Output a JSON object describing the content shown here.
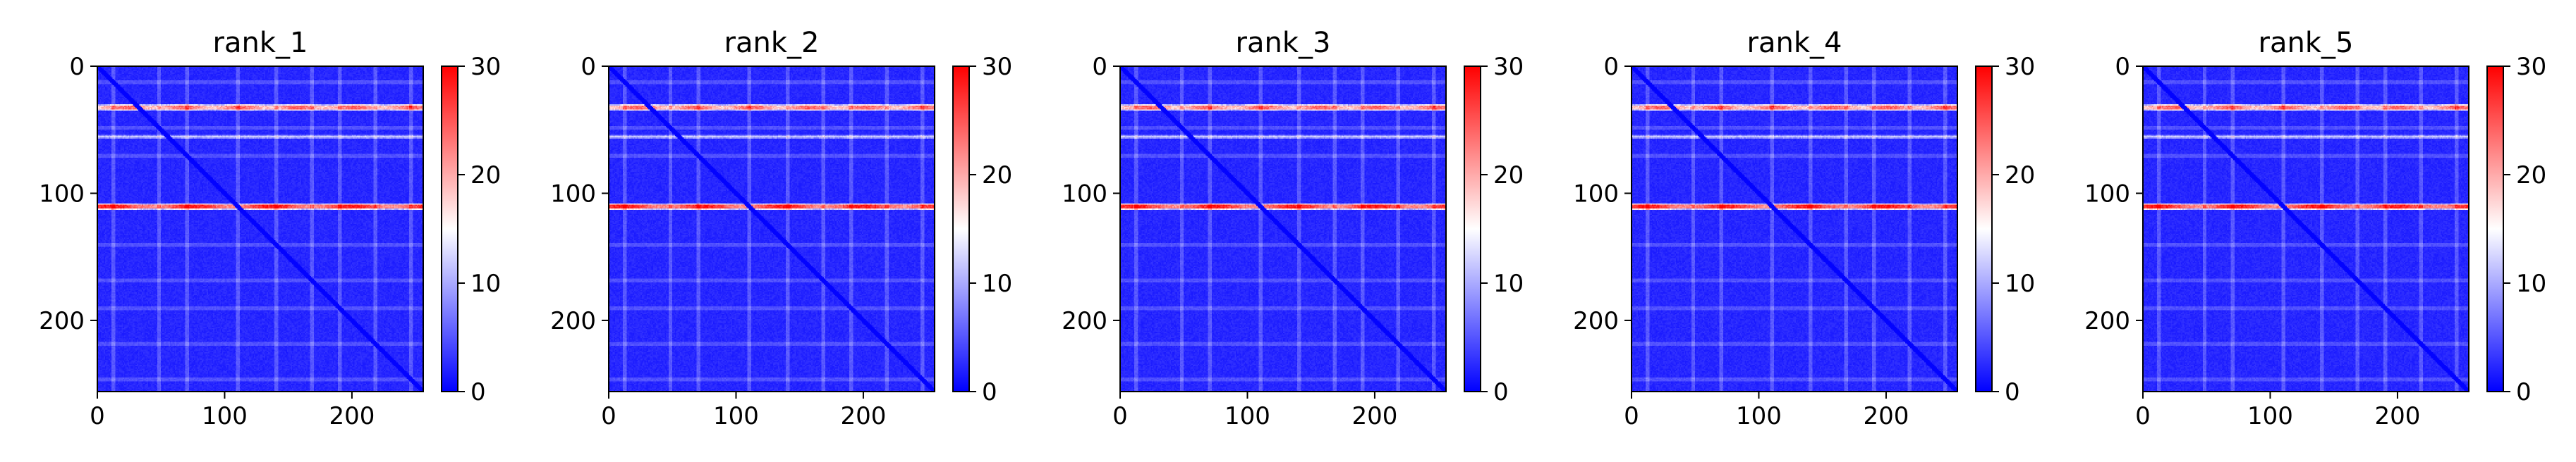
{
  "chart_data": [
    {
      "type": "heatmap",
      "title": "rank_1",
      "shape": [
        256,
        256
      ],
      "x_ticks": [
        0,
        100,
        200
      ],
      "y_ticks": [
        0,
        100,
        200
      ],
      "xlim": [
        0,
        256
      ],
      "ylim": [
        256,
        0
      ],
      "colorbar": {
        "min": 0,
        "max": 30,
        "ticks": [
          0,
          10,
          20,
          30
        ],
        "colormap": "bwr",
        "colors": [
          "#0000ff",
          "#ffffff",
          "#ff0000"
        ]
      },
      "bright_rows": [
        32,
        55,
        110
      ],
      "diagonal": true
    },
    {
      "type": "heatmap",
      "title": "rank_2",
      "shape": [
        256,
        256
      ],
      "x_ticks": [
        0,
        100,
        200
      ],
      "y_ticks": [
        0,
        100,
        200
      ],
      "xlim": [
        0,
        256
      ],
      "ylim": [
        256,
        0
      ],
      "colorbar": {
        "min": 0,
        "max": 30,
        "ticks": [
          0,
          10,
          20,
          30
        ],
        "colormap": "bwr",
        "colors": [
          "#0000ff",
          "#ffffff",
          "#ff0000"
        ]
      },
      "bright_rows": [
        32,
        55,
        110
      ],
      "diagonal": true
    },
    {
      "type": "heatmap",
      "title": "rank_3",
      "shape": [
        256,
        256
      ],
      "x_ticks": [
        0,
        100,
        200
      ],
      "y_ticks": [
        0,
        100,
        200
      ],
      "xlim": [
        0,
        256
      ],
      "ylim": [
        256,
        0
      ],
      "colorbar": {
        "min": 0,
        "max": 30,
        "ticks": [
          0,
          10,
          20,
          30
        ],
        "colormap": "bwr",
        "colors": [
          "#0000ff",
          "#ffffff",
          "#ff0000"
        ]
      },
      "bright_rows": [
        32,
        55,
        110
      ],
      "diagonal": true
    },
    {
      "type": "heatmap",
      "title": "rank_4",
      "shape": [
        256,
        256
      ],
      "x_ticks": [
        0,
        100,
        200
      ],
      "y_ticks": [
        0,
        100,
        200
      ],
      "xlim": [
        0,
        256
      ],
      "ylim": [
        256,
        0
      ],
      "colorbar": {
        "min": 0,
        "max": 30,
        "ticks": [
          0,
          10,
          20,
          30
        ],
        "colormap": "bwr",
        "colors": [
          "#0000ff",
          "#ffffff",
          "#ff0000"
        ]
      },
      "bright_rows": [
        32,
        55,
        110
      ],
      "diagonal": true
    },
    {
      "type": "heatmap",
      "title": "rank_5",
      "shape": [
        256,
        256
      ],
      "x_ticks": [
        0,
        100,
        200
      ],
      "y_ticks": [
        0,
        100,
        200
      ],
      "xlim": [
        0,
        256
      ],
      "ylim": [
        256,
        0
      ],
      "colorbar": {
        "min": 0,
        "max": 30,
        "ticks": [
          0,
          10,
          20,
          30
        ],
        "colormap": "bwr",
        "colors": [
          "#0000ff",
          "#ffffff",
          "#ff0000"
        ]
      },
      "bright_rows": [
        32,
        55,
        110
      ],
      "diagonal": true
    }
  ]
}
